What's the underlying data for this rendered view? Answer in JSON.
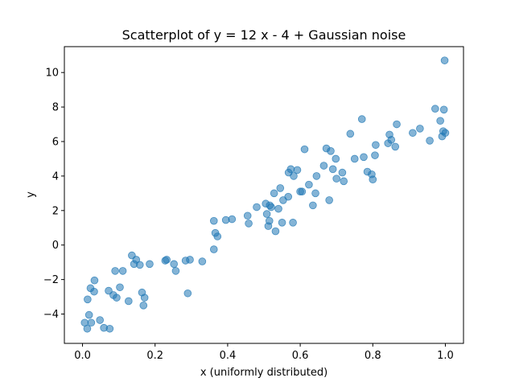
{
  "chart_data": {
    "type": "scatter",
    "title": "Scatterplot of y = 12 x - 4 + Gaussian noise",
    "xlabel": "x (uniformly distributed)",
    "ylabel": "y",
    "xlim": [
      -0.05,
      1.05
    ],
    "ylim": [
      -5.7,
      11.5
    ],
    "xticks": [
      0.0,
      0.2,
      0.4,
      0.6,
      0.8,
      1.0
    ],
    "xtick_labels": [
      "0.0",
      "0.2",
      "0.4",
      "0.6",
      "0.8",
      "1.0"
    ],
    "yticks": [
      -4,
      -2,
      0,
      2,
      4,
      6,
      8,
      10
    ],
    "ytick_labels": [
      "−4",
      "−2",
      "0",
      "2",
      "4",
      "6",
      "8",
      "10"
    ],
    "grid": false,
    "marker_color": "#1f77b4",
    "marker_alpha": 0.55,
    "points": [
      [
        0.006,
        -4.5
      ],
      [
        0.013,
        -4.85
      ],
      [
        0.018,
        -4.05
      ],
      [
        0.024,
        -4.5
      ],
      [
        0.014,
        -3.15
      ],
      [
        0.022,
        -2.5
      ],
      [
        0.032,
        -2.7
      ],
      [
        0.033,
        -2.05
      ],
      [
        0.048,
        -4.35
      ],
      [
        0.059,
        -4.8
      ],
      [
        0.072,
        -2.65
      ],
      [
        0.075,
        -4.85
      ],
      [
        0.085,
        -2.9
      ],
      [
        0.09,
        -1.5
      ],
      [
        0.094,
        -3.05
      ],
      [
        0.103,
        -2.45
      ],
      [
        0.111,
        -1.5
      ],
      [
        0.127,
        -3.25
      ],
      [
        0.136,
        -0.6
      ],
      [
        0.142,
        -1.1
      ],
      [
        0.148,
        -0.85
      ],
      [
        0.158,
        -1.15
      ],
      [
        0.164,
        -2.75
      ],
      [
        0.168,
        -3.5
      ],
      [
        0.171,
        -3.05
      ],
      [
        0.185,
        -1.1
      ],
      [
        0.228,
        -0.9
      ],
      [
        0.232,
        -0.85
      ],
      [
        0.252,
        -1.1
      ],
      [
        0.257,
        -1.5
      ],
      [
        0.284,
        -0.9
      ],
      [
        0.29,
        -2.8
      ],
      [
        0.296,
        -0.85
      ],
      [
        0.33,
        -0.95
      ],
      [
        0.362,
        -0.25
      ],
      [
        0.362,
        1.4
      ],
      [
        0.366,
        0.7
      ],
      [
        0.372,
        0.5
      ],
      [
        0.395,
        1.45
      ],
      [
        0.412,
        1.5
      ],
      [
        0.455,
        1.7
      ],
      [
        0.458,
        1.25
      ],
      [
        0.48,
        2.2
      ],
      [
        0.505,
        2.4
      ],
      [
        0.508,
        1.8
      ],
      [
        0.512,
        1.1
      ],
      [
        0.515,
        1.4
      ],
      [
        0.516,
        2.3
      ],
      [
        0.52,
        2.2
      ],
      [
        0.528,
        3.0
      ],
      [
        0.532,
        0.8
      ],
      [
        0.54,
        2.1
      ],
      [
        0.545,
        3.3
      ],
      [
        0.55,
        1.3
      ],
      [
        0.553,
        2.6
      ],
      [
        0.567,
        2.8
      ],
      [
        0.568,
        4.2
      ],
      [
        0.574,
        4.4
      ],
      [
        0.58,
        1.3
      ],
      [
        0.582,
        4.0
      ],
      [
        0.592,
        4.35
      ],
      [
        0.6,
        3.1
      ],
      [
        0.605,
        3.1
      ],
      [
        0.612,
        5.55
      ],
      [
        0.624,
        3.5
      ],
      [
        0.635,
        2.3
      ],
      [
        0.642,
        3.0
      ],
      [
        0.645,
        4.0
      ],
      [
        0.665,
        4.6
      ],
      [
        0.672,
        5.6
      ],
      [
        0.68,
        2.6
      ],
      [
        0.684,
        5.45
      ],
      [
        0.69,
        4.4
      ],
      [
        0.698,
        5.0
      ],
      [
        0.7,
        3.85
      ],
      [
        0.716,
        4.2
      ],
      [
        0.72,
        3.7
      ],
      [
        0.738,
        6.45
      ],
      [
        0.75,
        5.0
      ],
      [
        0.77,
        7.3
      ],
      [
        0.775,
        5.1
      ],
      [
        0.785,
        4.25
      ],
      [
        0.797,
        4.1
      ],
      [
        0.8,
        3.8
      ],
      [
        0.806,
        5.2
      ],
      [
        0.808,
        5.8
      ],
      [
        0.842,
        5.9
      ],
      [
        0.846,
        6.4
      ],
      [
        0.851,
        6.1
      ],
      [
        0.862,
        5.7
      ],
      [
        0.866,
        7.0
      ],
      [
        0.91,
        6.5
      ],
      [
        0.93,
        6.75
      ],
      [
        0.957,
        6.05
      ],
      [
        0.972,
        7.9
      ],
      [
        0.986,
        7.2
      ],
      [
        0.991,
        6.3
      ],
      [
        0.994,
        6.6
      ],
      [
        0.996,
        7.85
      ],
      [
        1.0,
        6.5
      ],
      [
        0.998,
        10.7
      ]
    ]
  }
}
